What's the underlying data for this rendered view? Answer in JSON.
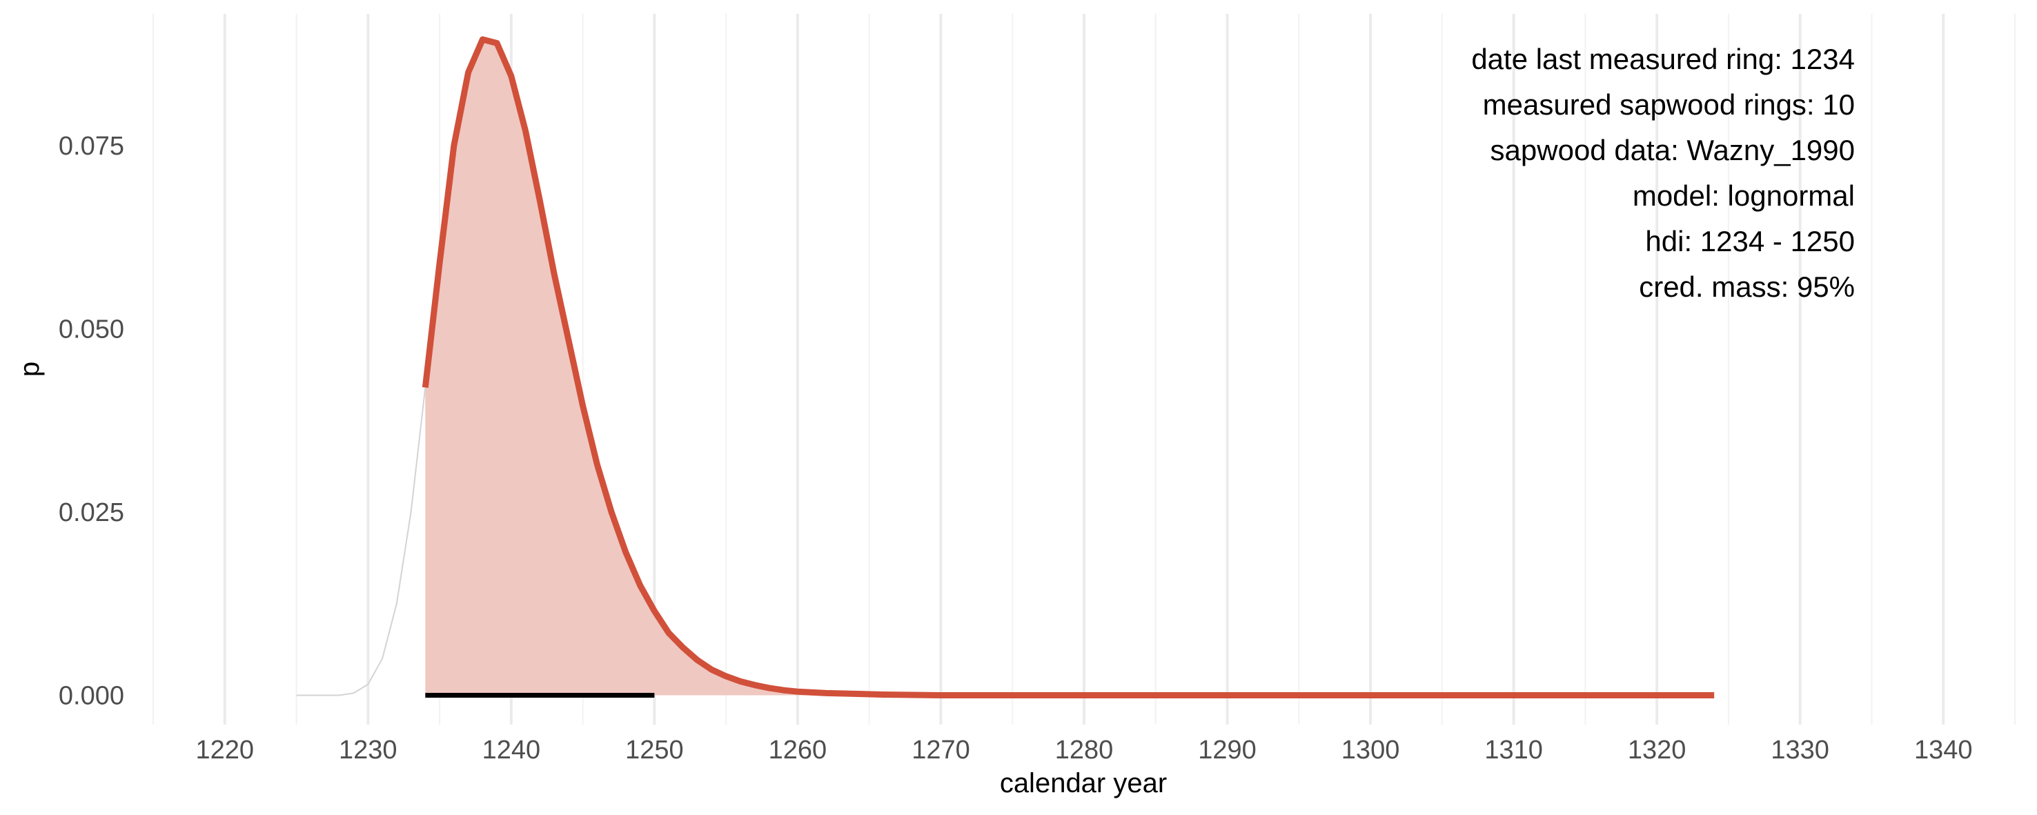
{
  "chart_data": {
    "type": "area",
    "xlabel": "calendar year",
    "ylabel": "p",
    "xlim": [
      1215,
      1345
    ],
    "ylim": [
      -0.004,
      0.093
    ],
    "x_ticks": [
      1220,
      1230,
      1240,
      1250,
      1260,
      1270,
      1280,
      1290,
      1300,
      1310,
      1320,
      1330,
      1340
    ],
    "y_ticks": [
      0.0,
      0.025,
      0.05,
      0.075
    ],
    "y_tick_labels": [
      "0.000",
      "0.025",
      "0.050",
      "0.075"
    ],
    "grid": "vertical major and minor lines only",
    "annotations": [
      "date last measured ring: 1234",
      "measured sapwood rings: 10",
      "sapwood data: Wazny_1990",
      "model: lognormal",
      "hdi: 1234 - 1250",
      "cred. mass: 95%"
    ],
    "annotation_position": "top-right",
    "series": [
      {
        "role": "full density curve",
        "color": "#d3d3d3",
        "points": [
          [
            1225,
            0.0
          ],
          [
            1226,
            0.0
          ],
          [
            1227,
            0.0
          ],
          [
            1228,
            0.0
          ],
          [
            1229,
            0.0003
          ],
          [
            1230,
            0.0015
          ],
          [
            1231,
            0.005
          ],
          [
            1232,
            0.0125
          ],
          [
            1233,
            0.025
          ],
          [
            1234,
            0.042
          ]
        ]
      },
      {
        "role": "density after last measured ring",
        "color": "#d1503a",
        "fill": "#efc8c1",
        "points": [
          [
            1234,
            0.042
          ],
          [
            1235,
            0.059
          ],
          [
            1236,
            0.075
          ],
          [
            1237,
            0.085
          ],
          [
            1238,
            0.0895
          ],
          [
            1239,
            0.089
          ],
          [
            1240,
            0.0845
          ],
          [
            1241,
            0.077
          ],
          [
            1242,
            0.0675
          ],
          [
            1243,
            0.0575
          ],
          [
            1244,
            0.0485
          ],
          [
            1245,
            0.0395
          ],
          [
            1246,
            0.0315
          ],
          [
            1247,
            0.025
          ],
          [
            1248,
            0.0195
          ],
          [
            1249,
            0.015
          ],
          [
            1250,
            0.0115
          ],
          [
            1251,
            0.0085
          ],
          [
            1252,
            0.0065
          ],
          [
            1253,
            0.0048
          ],
          [
            1254,
            0.0035
          ],
          [
            1255,
            0.0026
          ],
          [
            1256,
            0.0019
          ],
          [
            1257,
            0.0014
          ],
          [
            1258,
            0.001
          ],
          [
            1259,
            0.0007
          ],
          [
            1260,
            0.0005
          ],
          [
            1262,
            0.0003
          ],
          [
            1264,
            0.0002
          ],
          [
            1266,
            0.0001
          ],
          [
            1270,
            0.0
          ],
          [
            1280,
            0.0
          ],
          [
            1290,
            0.0
          ],
          [
            1300,
            0.0
          ],
          [
            1310,
            0.0
          ],
          [
            1320,
            0.0
          ],
          [
            1324,
            0.0
          ]
        ]
      }
    ],
    "hdi_interval": {
      "lower": 1234,
      "upper": 1250,
      "color": "#000000"
    }
  }
}
